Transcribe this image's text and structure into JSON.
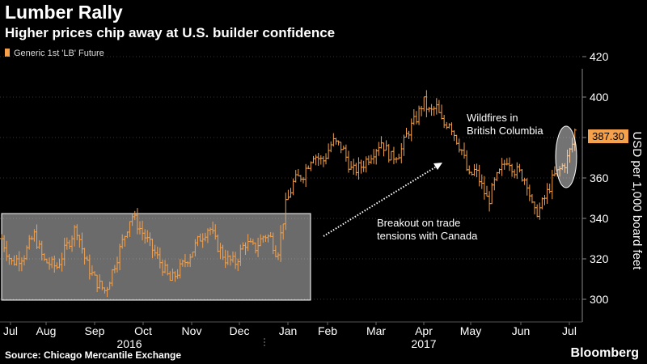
{
  "title": "Lumber Rally",
  "subtitle": "Higher prices chip away at U.S. builder confidence",
  "legend_label": "Generic 1st 'LB' Future",
  "source": "Source: Chicago Mercantile Exchange",
  "logo_text": "Bloomberg",
  "last_price_label": "387.30",
  "annotations": {
    "wildfires": [
      "Wildfires in",
      "British Columbia"
    ],
    "breakout": [
      "Breakout on trade",
      "tensions with Canada"
    ]
  },
  "chart_data": {
    "type": "bar",
    "style": "ohlc",
    "series_color": "#f5a04a",
    "ylabel": "USD per 1,000 board feet",
    "ylim": [
      295,
      425
    ],
    "yticks": [
      300,
      320,
      340,
      360,
      380,
      400,
      420
    ],
    "months": [
      "Jul",
      "Aug",
      "Sep",
      "Oct",
      "Nov",
      "Dec",
      "Jan",
      "Feb",
      "Mar",
      "Apr",
      "May",
      "Jun",
      "Jul"
    ],
    "years": [
      "2016",
      "2017"
    ],
    "monthly_ranges": [
      {
        "month": "Jul 2016",
        "low": 318,
        "high": 340
      },
      {
        "month": "Aug 2016",
        "low": 312,
        "high": 338
      },
      {
        "month": "Sep 2016",
        "low": 301,
        "high": 345
      },
      {
        "month": "Oct 2016",
        "low": 320,
        "high": 340
      },
      {
        "month": "Nov 2016",
        "low": 303,
        "high": 340
      },
      {
        "month": "Dec 2016",
        "low": 312,
        "high": 335
      },
      {
        "month": "Jan 2017",
        "low": 318,
        "high": 340
      },
      {
        "month": "Feb 2017",
        "low": 338,
        "high": 390
      },
      {
        "month": "Mar 2017",
        "low": 358,
        "high": 385
      },
      {
        "month": "Apr 2017",
        "low": 380,
        "high": 415
      },
      {
        "month": "May 2017",
        "low": 355,
        "high": 397
      },
      {
        "month": "Jun 2017",
        "low": 334,
        "high": 372
      },
      {
        "month": "Jul 2017",
        "low": 358,
        "high": 390
      }
    ],
    "last_price": 387.3,
    "waypoints": [
      [
        0,
        330
      ],
      [
        6,
        318
      ],
      [
        14,
        322
      ],
      [
        20,
        332
      ],
      [
        26,
        319
      ],
      [
        34,
        316
      ],
      [
        40,
        326
      ],
      [
        46,
        336
      ],
      [
        52,
        318
      ],
      [
        58,
        309
      ],
      [
        64,
        304
      ],
      [
        70,
        318
      ],
      [
        76,
        332
      ],
      [
        80,
        342
      ],
      [
        86,
        334
      ],
      [
        92,
        326
      ],
      [
        98,
        318
      ],
      [
        104,
        309
      ],
      [
        110,
        315
      ],
      [
        116,
        322
      ],
      [
        122,
        330
      ],
      [
        128,
        336
      ],
      [
        132,
        328
      ],
      [
        138,
        320
      ],
      [
        144,
        318
      ],
      [
        150,
        328
      ],
      [
        156,
        325
      ],
      [
        162,
        332
      ],
      [
        166,
        330
      ],
      [
        170,
        322
      ],
      [
        175,
        346
      ],
      [
        180,
        358
      ],
      [
        186,
        362
      ],
      [
        192,
        372
      ],
      [
        198,
        368
      ],
      [
        204,
        378
      ],
      [
        210,
        375
      ],
      [
        216,
        363
      ],
      [
        222,
        366
      ],
      [
        228,
        372
      ],
      [
        234,
        378
      ],
      [
        240,
        370
      ],
      [
        246,
        373
      ],
      [
        250,
        382
      ],
      [
        256,
        390
      ],
      [
        260,
        398
      ],
      [
        264,
        392
      ],
      [
        268,
        395
      ],
      [
        272,
        386
      ],
      [
        276,
        388
      ],
      [
        280,
        380
      ],
      [
        284,
        373
      ],
      [
        288,
        360
      ],
      [
        292,
        364
      ],
      [
        296,
        356
      ],
      [
        300,
        348
      ],
      [
        304,
        358
      ],
      [
        308,
        364
      ],
      [
        312,
        370
      ],
      [
        316,
        364
      ],
      [
        320,
        362
      ],
      [
        324,
        358
      ],
      [
        328,
        342
      ],
      [
        332,
        345
      ],
      [
        336,
        352
      ],
      [
        340,
        360
      ],
      [
        344,
        364
      ],
      [
        348,
        368
      ],
      [
        352,
        377
      ],
      [
        354,
        386
      ]
    ]
  }
}
